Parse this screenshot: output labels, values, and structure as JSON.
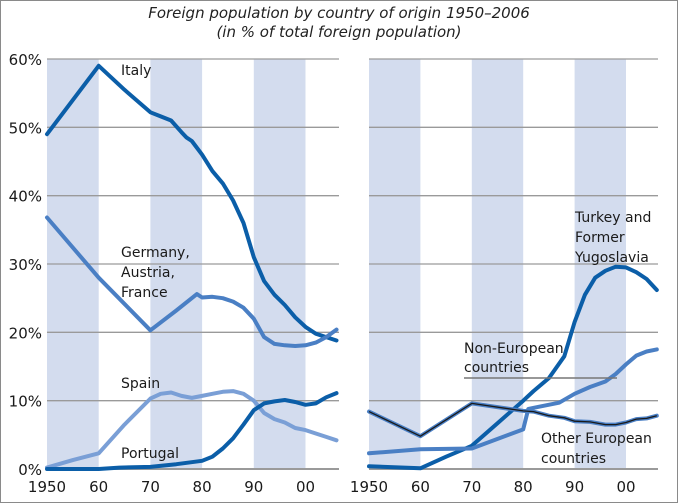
{
  "colors": {
    "band": "#d3dcee",
    "grid": "#9a9a9a",
    "dark": "#0b5ea8",
    "mid": "#4a7fc4",
    "light": "#7a9fd6",
    "black": "#1a1a1a"
  },
  "chart_data": [
    {
      "type": "line",
      "panel": "left",
      "title": "Foreign population by country of origin 1950–2006",
      "subtitle": "(in % of total foreign population)",
      "xlabel": "",
      "ylabel": "",
      "xlim": [
        1950,
        2006
      ],
      "ylim": [
        0,
        60
      ],
      "yticks": [
        "0%",
        "10%",
        "20%",
        "30%",
        "40%",
        "50%",
        "60%"
      ],
      "xticks": [
        "1950",
        "60",
        "70",
        "80",
        "90",
        "00"
      ],
      "grid": true,
      "shaded_periods": [
        [
          1950,
          1960
        ],
        [
          1970,
          1980
        ],
        [
          1990,
          2000
        ]
      ],
      "series": [
        {
          "name": "Italy",
          "color": "dark",
          "x": [
            1950,
            1960,
            1965,
            1970,
            1972,
            1974,
            1976,
            1977,
            1978,
            1980,
            1982,
            1984,
            1986,
            1988,
            1990,
            1992,
            1994,
            1996,
            1998,
            2000,
            2002,
            2004,
            2006
          ],
          "y": [
            49,
            59,
            55.5,
            52.2,
            51.6,
            51,
            49.3,
            48.5,
            48,
            46,
            43.6,
            41.8,
            39.3,
            36,
            31,
            27.5,
            25.5,
            24,
            22.2,
            20.8,
            19.8,
            19.3,
            18.8
          ]
        },
        {
          "name": "Germany, Austria, France",
          "color": "mid",
          "x": [
            1950,
            1960,
            1970,
            1975,
            1979,
            1980,
            1982,
            1984,
            1986,
            1988,
            1990,
            1992,
            1994,
            1996,
            1998,
            2000,
            2002,
            2004,
            2006
          ],
          "y": [
            36.8,
            28,
            20.3,
            23.2,
            25.6,
            25.1,
            25.2,
            25,
            24.5,
            23.6,
            22,
            19.3,
            18.3,
            18.1,
            18,
            18.1,
            18.5,
            19.3,
            20.4
          ]
        },
        {
          "name": "Spain",
          "color": "light",
          "x": [
            1950,
            1955,
            1960,
            1965,
            1970,
            1972,
            1974,
            1976,
            1978,
            1980,
            1982,
            1984,
            1986,
            1988,
            1990,
            1992,
            1994,
            1996,
            1998,
            2000,
            2002,
            2004,
            2006
          ],
          "y": [
            0.2,
            1.3,
            2.3,
            6.5,
            10.3,
            11,
            11.2,
            10.7,
            10.4,
            10.7,
            11,
            11.3,
            11.4,
            11,
            10,
            8.2,
            7.3,
            6.8,
            6,
            5.7,
            5.2,
            4.7,
            4.2
          ]
        },
        {
          "name": "Portugal",
          "color": "dark",
          "x": [
            1950,
            1960,
            1964,
            1970,
            1975,
            1980,
            1982,
            1984,
            1986,
            1988,
            1990,
            1992,
            1994,
            1996,
            1998,
            2000,
            2002,
            2004,
            2006
          ],
          "y": [
            0,
            0,
            0.2,
            0.3,
            0.7,
            1.2,
            1.8,
            3,
            4.5,
            6.5,
            8.6,
            9.6,
            9.9,
            10.1,
            9.8,
            9.4,
            9.6,
            10.5,
            11.1
          ]
        }
      ],
      "labels": [
        "Italy",
        "Germany,",
        "Austria,",
        "France",
        "Spain",
        "Portugal"
      ]
    },
    {
      "type": "line",
      "panel": "right",
      "xlim": [
        1950,
        2006
      ],
      "ylim": [
        0,
        60
      ],
      "xticks": [
        "1950",
        "60",
        "70",
        "80",
        "90",
        "00"
      ],
      "grid": true,
      "shaded_periods": [
        [
          1950,
          1960
        ],
        [
          1970,
          1980
        ],
        [
          1990,
          2000
        ]
      ],
      "series": [
        {
          "name": "Turkey and Former Yugoslavia",
          "color": "dark",
          "x": [
            1950,
            1960,
            1965,
            1970,
            1975,
            1980,
            1982,
            1985,
            1988,
            1990,
            1992,
            1994,
            1996,
            1998,
            2000,
            2002,
            2004,
            2006
          ],
          "y": [
            0.4,
            0.1,
            1.8,
            3.4,
            6.7,
            10,
            11.4,
            13.3,
            16.5,
            21.5,
            25.5,
            28,
            29,
            29.6,
            29.5,
            28.8,
            27.8,
            26.2
          ]
        },
        {
          "name": "Non-European countries",
          "color": "mid",
          "x": [
            1950,
            1960,
            1970,
            1980,
            1981,
            1983,
            1987,
            1990,
            1993,
            1996,
            1998,
            2000,
            2002,
            2004,
            2006
          ],
          "y": [
            2.3,
            2.9,
            3,
            5.8,
            8.8,
            9.1,
            9.7,
            11,
            12,
            12.8,
            13.9,
            15.3,
            16.6,
            17.2,
            17.5
          ]
        },
        {
          "name": "Other European countries",
          "color": "black",
          "x": [
            1950,
            1960,
            1970,
            1980,
            1982,
            1985,
            1988,
            1990,
            1993,
            1996,
            1998,
            2000,
            2002,
            2004,
            2006
          ],
          "y": [
            8.4,
            4.8,
            9.6,
            8.5,
            8.4,
            7.8,
            7.5,
            7,
            6.9,
            6.5,
            6.5,
            6.8,
            7.3,
            7.4,
            7.8
          ]
        }
      ],
      "labels": [
        "Turkey and",
        "Former",
        "Yugoslavia",
        "Non-European",
        "countries",
        "Other European",
        "countries"
      ]
    }
  ]
}
